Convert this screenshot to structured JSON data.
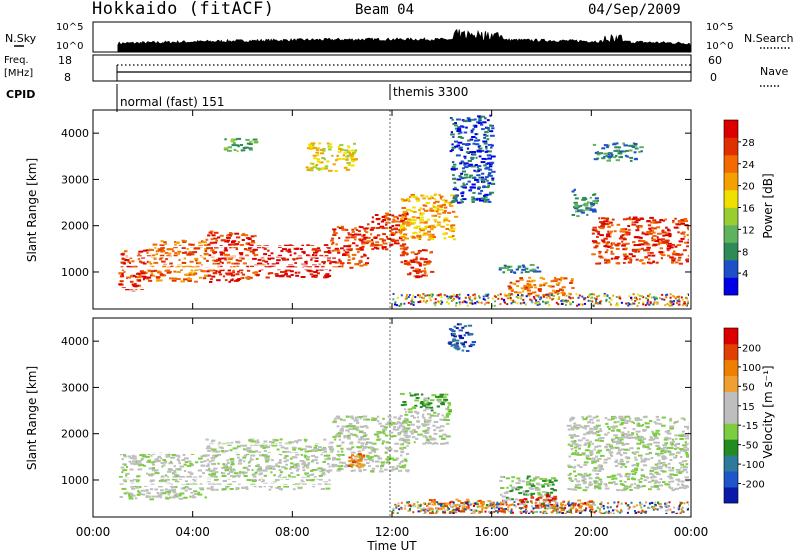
{
  "header": {
    "station": "Hokkaido (fitACF)",
    "beam": "Beam 04",
    "date": "04/Sep/2009"
  },
  "summary_panels": {
    "nsky_label": "N.Sky",
    "nsky_ticks": [
      "10^5",
      "10^0"
    ],
    "nsky_right_ticks": [
      "10^5",
      "10^0"
    ],
    "nsearch_label": "N.Search",
    "freq_label_1": "Freq.",
    "freq_label_2": "[MHz]",
    "freq_ticks": [
      "18",
      "8"
    ],
    "nave_ticks": [
      "60",
      "0"
    ],
    "nave_label": "Nave",
    "cpid_label": "CPID",
    "cpid_modes": [
      {
        "name": "normal (fast) 151",
        "start_hour": 1.0
      },
      {
        "name": "themis 3300",
        "start_hour": 12.0
      }
    ]
  },
  "colors": {
    "power": [
      "#0000e6",
      "#1c4fc9",
      "#2e8b57",
      "#5fb35f",
      "#9acd32",
      "#f0e000",
      "#f4a000",
      "#f36a00",
      "#e03000",
      "#dd0000"
    ],
    "velocity": [
      "#0a1aa8",
      "#1e55c8",
      "#2f7a9a",
      "#228b22",
      "#7ccd40",
      "#bebebe",
      "#bebebe",
      "#f0a030",
      "#ef7f00",
      "#e04000",
      "#dd0000"
    ],
    "gray": "#c8c8c4"
  },
  "chart_data": [
    {
      "type": "heatmap",
      "name": "power",
      "xlabel": "",
      "ylabel": "Slant Range [km]",
      "ylim": [
        200,
        4500
      ],
      "xlim": [
        0,
        24
      ],
      "yticks": [
        "1000",
        "2000",
        "3000",
        "4000"
      ],
      "colorbar_label": "Power [dB]",
      "colorbar_ticks": [
        "4",
        "8",
        "12",
        "16",
        "20",
        "24",
        "28"
      ],
      "regions": [
        {
          "x": [
            1.0,
            2.2
          ],
          "y": [
            600,
            1500
          ],
          "level": 8
        },
        {
          "x": [
            2.2,
            4.5
          ],
          "y": [
            800,
            1700
          ],
          "level": 7
        },
        {
          "x": [
            4.5,
            6.5
          ],
          "y": [
            800,
            1900
          ],
          "level": 8
        },
        {
          "x": [
            6.5,
            9.5
          ],
          "y": [
            900,
            1600
          ],
          "level": 9
        },
        {
          "x": [
            9.5,
            11.0
          ],
          "y": [
            1100,
            2000
          ],
          "level": 8
        },
        {
          "x": [
            11.0,
            12.6
          ],
          "y": [
            1500,
            2300
          ],
          "level": 8
        },
        {
          "x": [
            12.3,
            14.5
          ],
          "y": [
            1700,
            2700
          ],
          "level": 6
        },
        {
          "x": [
            12.3,
            13.6
          ],
          "y": [
            900,
            1500
          ],
          "level": 8
        },
        {
          "x": [
            14.3,
            16.0
          ],
          "y": [
            2500,
            4400
          ],
          "level": 1
        },
        {
          "x": [
            16.0,
            18.0
          ],
          "y": [
            1000,
            1200
          ],
          "level": 2
        },
        {
          "x": [
            16.5,
            19.2
          ],
          "y": [
            500,
            900
          ],
          "level": 7
        },
        {
          "x": [
            19.2,
            20.2
          ],
          "y": [
            2200,
            2800
          ],
          "level": 2
        },
        {
          "x": [
            20.0,
            24.0
          ],
          "y": [
            1200,
            2200
          ],
          "level": 8
        },
        {
          "x": [
            20.0,
            22.0
          ],
          "y": [
            3400,
            3800
          ],
          "level": 2
        },
        {
          "x": [
            5.2,
            6.5
          ],
          "y": [
            3600,
            3900
          ],
          "level": 3
        },
        {
          "x": [
            8.5,
            10.5
          ],
          "y": [
            3200,
            3800
          ],
          "level": 5
        }
      ]
    },
    {
      "type": "heatmap",
      "name": "velocity",
      "xlabel": "Time UT",
      "ylabel": "Slant Range [km]",
      "ylim": [
        200,
        4500
      ],
      "xlim": [
        0,
        24
      ],
      "xticks": [
        "00:00",
        "04:00",
        "08:00",
        "12:00",
        "16:00",
        "20:00",
        "00:00"
      ],
      "yticks": [
        "1000",
        "2000",
        "3000",
        "4000"
      ],
      "colorbar_label": "Velocity [m s⁻¹]",
      "colorbar_ticks": [
        "200",
        "100",
        "50",
        "15",
        "-15",
        "-50",
        "-100",
        "-200"
      ],
      "regions": [
        {
          "x": [
            1.0,
            4.5
          ],
          "y": [
            600,
            1600
          ],
          "level": 5
        },
        {
          "x": [
            4.5,
            9.5
          ],
          "y": [
            800,
            1900
          ],
          "level": 5
        },
        {
          "x": [
            9.5,
            12.6
          ],
          "y": [
            1200,
            2400
          ],
          "level": 5
        },
        {
          "x": [
            12.3,
            14.3
          ],
          "y": [
            1800,
            2500
          ],
          "level": 5
        },
        {
          "x": [
            12.3,
            14.3
          ],
          "y": [
            2500,
            2900
          ],
          "level": 4
        },
        {
          "x": [
            13.0,
            16.5
          ],
          "y": [
            300,
            600
          ],
          "level": 8
        },
        {
          "x": [
            16.3,
            18.5
          ],
          "y": [
            500,
            1100
          ],
          "level": 4
        },
        {
          "x": [
            17.0,
            18.5
          ],
          "y": [
            400,
            700
          ],
          "level": 10
        },
        {
          "x": [
            19.0,
            24.0
          ],
          "y": [
            800,
            2400
          ],
          "level": 5
        },
        {
          "x": [
            18.0,
            20.0
          ],
          "y": [
            300,
            600
          ],
          "level": 8
        },
        {
          "x": [
            10.2,
            10.8
          ],
          "y": [
            1300,
            1600
          ],
          "level": 8
        },
        {
          "x": [
            14.2,
            15.2
          ],
          "y": [
            3800,
            4400
          ],
          "level": 1
        }
      ]
    }
  ]
}
